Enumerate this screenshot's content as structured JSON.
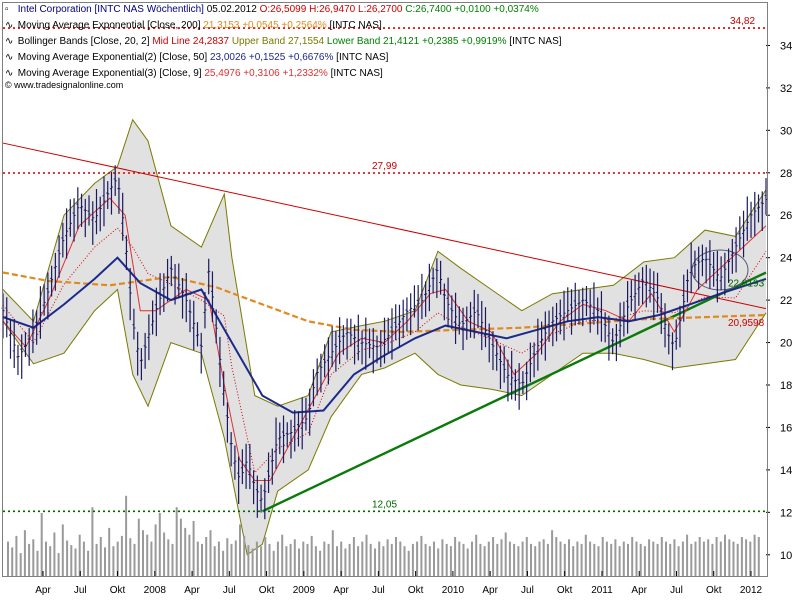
{
  "header": {
    "title": "Intel Corporation [INTC NAS  Wöchentlich]",
    "date": "05.02.2012",
    "ohlc": "O:26,5099 H:26,9470 L:26,2700",
    "close": "C:26,7400 +0,0100 +0,0374%"
  },
  "indicators": [
    {
      "name": "Moving Average Exponential [Close, 200]",
      "value": "21,3153 +0,0545 +0,2564%",
      "suffix": "[INTC NAS]",
      "color": "#e08a1e"
    },
    {
      "name": "Bollinger Bands [Close, 20, 2]",
      "mid": "Mid Line 24,2837",
      "upper": "Upper Band 27,1554",
      "lower": "Lower Band 21,4121 +0,2385 +0,9919%",
      "suffix": "[INTC NAS]",
      "mid_color": "#d00000",
      "band_color": "#7a7a00",
      "change_color": "#008000"
    },
    {
      "name": "Moving Average Exponential(2) [Close, 50]",
      "value": "23,0026 +0,1525 +0,6676%",
      "suffix": "[INTC NAS]",
      "color": "#1c2a8c"
    },
    {
      "name": "Moving Average Exponential(3) [Close, 9]",
      "value": "25,4976 +0,3106 +1,2332%",
      "suffix": "[INTC NAS]",
      "color": "#e03030"
    }
  ],
  "watermark": "www.tradesignalonline.com",
  "chart_data": {
    "type": "line",
    "title": "Intel Corporation [INTC NAS  Wöchentlich]",
    "y_range": [
      9,
      36
    ],
    "y_ticks": [
      10,
      12,
      14,
      16,
      18,
      20,
      22,
      24,
      26,
      28,
      30,
      32,
      34
    ],
    "y_tick_labels": [
      "10",
      "12",
      "14",
      "16",
      "18",
      "20",
      "22",
      "24",
      "26",
      "28",
      "30",
      "32",
      "34"
    ],
    "x_tick_labels": [
      "Apr",
      "Jul",
      "Okt",
      "2008",
      "Apr",
      "Jul",
      "Okt",
      "2009",
      "Apr",
      "Jul",
      "Okt",
      "2010",
      "Apr",
      "Jul",
      "Okt",
      "2011",
      "Apr",
      "Jul",
      "Okt",
      "2012"
    ],
    "grid": false,
    "colors": {
      "price": "#1a1a60",
      "ema200": "#e08a1e",
      "ema50": "#1c2a8c",
      "ema9": "#e03030",
      "bollinger_band": "#7a7a00",
      "bollinger_fill": "#dcdcdc",
      "bollinger_mid": "#d00000",
      "downtrend": "#cc0000",
      "uptrend": "#0a7a0a",
      "volume": "#9a9a9a",
      "level_red": "#cc0000",
      "level_green": "#006400"
    },
    "horizontal_levels": [
      {
        "value": 34.82,
        "label": "34,82",
        "color": "#cc0000"
      },
      {
        "value": 27.99,
        "label": "27,99",
        "color": "#cc0000"
      },
      {
        "value": 12.05,
        "label": "12,05",
        "color": "#006400"
      }
    ],
    "end_labels": [
      {
        "value": 22.8193,
        "label": "22,8193",
        "color": "#006400"
      },
      {
        "value": 20.9598,
        "label": "20,9598",
        "color": "#cc0000"
      }
    ],
    "trendlines": [
      {
        "name": "Downtrend",
        "from": [
          0,
          29.4
        ],
        "to": [
          1,
          21.6
        ]
      },
      {
        "name": "Uptrend",
        "from": [
          0.34,
          12.05
        ],
        "to": [
          1,
          23.3
        ]
      }
    ],
    "price_series": {
      "name": "INTC weekly",
      "points": [
        [
          0.0,
          21.5
        ],
        [
          0.02,
          19.3
        ],
        [
          0.04,
          20.5
        ],
        [
          0.06,
          22.5
        ],
        [
          0.08,
          25.0
        ],
        [
          0.1,
          26.5
        ],
        [
          0.12,
          25.8
        ],
        [
          0.14,
          27.2
        ],
        [
          0.15,
          27.8
        ],
        [
          0.16,
          25.0
        ],
        [
          0.17,
          21.0
        ],
        [
          0.18,
          19.0
        ],
        [
          0.2,
          21.5
        ],
        [
          0.22,
          23.5
        ],
        [
          0.24,
          22.0
        ],
        [
          0.26,
          19.8
        ],
        [
          0.27,
          23.5
        ],
        [
          0.28,
          20.5
        ],
        [
          0.29,
          17.5
        ],
        [
          0.3,
          15.0
        ],
        [
          0.31,
          13.5
        ],
        [
          0.32,
          14.5
        ],
        [
          0.33,
          13.2
        ],
        [
          0.34,
          12.5
        ],
        [
          0.35,
          14.0
        ],
        [
          0.36,
          15.5
        ],
        [
          0.38,
          15.8
        ],
        [
          0.4,
          16.5
        ],
        [
          0.41,
          18.5
        ],
        [
          0.43,
          19.5
        ],
        [
          0.45,
          20.5
        ],
        [
          0.47,
          20.0
        ],
        [
          0.49,
          19.8
        ],
        [
          0.51,
          20.5
        ],
        [
          0.53,
          21.5
        ],
        [
          0.55,
          22.0
        ],
        [
          0.57,
          23.5
        ],
        [
          0.58,
          22.0
        ],
        [
          0.6,
          20.8
        ],
        [
          0.62,
          21.5
        ],
        [
          0.64,
          20.0
        ],
        [
          0.66,
          18.5
        ],
        [
          0.68,
          18.0
        ],
        [
          0.7,
          19.8
        ],
        [
          0.72,
          21.0
        ],
        [
          0.74,
          21.5
        ],
        [
          0.76,
          22.0
        ],
        [
          0.78,
          21.5
        ],
        [
          0.8,
          20.0
        ],
        [
          0.82,
          21.8
        ],
        [
          0.84,
          23.0
        ],
        [
          0.86,
          22.0
        ],
        [
          0.87,
          20.5
        ],
        [
          0.88,
          19.8
        ],
        [
          0.89,
          21.5
        ],
        [
          0.9,
          23.5
        ],
        [
          0.92,
          24.0
        ],
        [
          0.94,
          23.0
        ],
        [
          0.96,
          24.5
        ],
        [
          0.98,
          26.0
        ],
        [
          1.0,
          26.74
        ]
      ]
    },
    "ema200": {
      "name": "Moving Average Exponential [Close, 200]",
      "points": [
        [
          0.0,
          23.3
        ],
        [
          0.06,
          22.9
        ],
        [
          0.14,
          22.7
        ],
        [
          0.22,
          23.1
        ],
        [
          0.28,
          22.6
        ],
        [
          0.34,
          21.8
        ],
        [
          0.4,
          21.0
        ],
        [
          0.46,
          20.6
        ],
        [
          0.52,
          20.5
        ],
        [
          0.6,
          20.6
        ],
        [
          0.68,
          20.7
        ],
        [
          0.76,
          20.9
        ],
        [
          0.84,
          21.1
        ],
        [
          0.92,
          21.2
        ],
        [
          1.0,
          21.3
        ]
      ]
    },
    "ema50": {
      "name": "Moving Average Exponential(2) [Close, 50]",
      "points": [
        [
          0.0,
          21.2
        ],
        [
          0.04,
          20.7
        ],
        [
          0.08,
          21.8
        ],
        [
          0.12,
          23.0
        ],
        [
          0.15,
          24.0
        ],
        [
          0.18,
          22.8
        ],
        [
          0.22,
          22.0
        ],
        [
          0.26,
          22.5
        ],
        [
          0.3,
          20.0
        ],
        [
          0.34,
          17.5
        ],
        [
          0.38,
          16.7
        ],
        [
          0.42,
          16.8
        ],
        [
          0.46,
          18.5
        ],
        [
          0.5,
          19.4
        ],
        [
          0.54,
          20.2
        ],
        [
          0.58,
          20.8
        ],
        [
          0.62,
          20.5
        ],
        [
          0.66,
          20.2
        ],
        [
          0.7,
          20.6
        ],
        [
          0.74,
          21.0
        ],
        [
          0.78,
          21.2
        ],
        [
          0.82,
          21.0
        ],
        [
          0.86,
          21.3
        ],
        [
          0.9,
          21.8
        ],
        [
          0.94,
          22.3
        ],
        [
          1.0,
          23.0
        ]
      ]
    },
    "bollinger_upper": {
      "name": "Upper Band",
      "points": [
        [
          0.0,
          22.5
        ],
        [
          0.04,
          21.0
        ],
        [
          0.08,
          26.0
        ],
        [
          0.12,
          27.5
        ],
        [
          0.15,
          28.3
        ],
        [
          0.17,
          30.5
        ],
        [
          0.19,
          29.5
        ],
        [
          0.22,
          25.5
        ],
        [
          0.26,
          24.5
        ],
        [
          0.29,
          27.0
        ],
        [
          0.3,
          24.0
        ],
        [
          0.33,
          17.5
        ],
        [
          0.36,
          17.0
        ],
        [
          0.4,
          17.5
        ],
        [
          0.43,
          20.5
        ],
        [
          0.47,
          20.8
        ],
        [
          0.5,
          21.0
        ],
        [
          0.54,
          21.5
        ],
        [
          0.57,
          24.3
        ],
        [
          0.6,
          23.5
        ],
        [
          0.64,
          22.5
        ],
        [
          0.68,
          21.5
        ],
        [
          0.72,
          22.3
        ],
        [
          0.76,
          22.5
        ],
        [
          0.8,
          22.7
        ],
        [
          0.84,
          23.8
        ],
        [
          0.88,
          24.0
        ],
        [
          0.92,
          25.3
        ],
        [
          0.96,
          25.0
        ],
        [
          1.0,
          27.2
        ]
      ]
    },
    "bollinger_lower": {
      "name": "Lower Band",
      "points": [
        [
          0.0,
          21.0
        ],
        [
          0.04,
          19.0
        ],
        [
          0.08,
          19.5
        ],
        [
          0.12,
          21.5
        ],
        [
          0.15,
          22.5
        ],
        [
          0.17,
          18.5
        ],
        [
          0.19,
          17.0
        ],
        [
          0.22,
          20.0
        ],
        [
          0.26,
          19.5
        ],
        [
          0.29,
          15.5
        ],
        [
          0.32,
          10.0
        ],
        [
          0.34,
          10.5
        ],
        [
          0.36,
          13.0
        ],
        [
          0.4,
          14.0
        ],
        [
          0.43,
          16.5
        ],
        [
          0.47,
          18.5
        ],
        [
          0.5,
          18.8
        ],
        [
          0.54,
          19.5
        ],
        [
          0.57,
          18.5
        ],
        [
          0.6,
          18.0
        ],
        [
          0.64,
          17.8
        ],
        [
          0.68,
          17.5
        ],
        [
          0.72,
          18.5
        ],
        [
          0.76,
          19.5
        ],
        [
          0.8,
          19.5
        ],
        [
          0.84,
          19.2
        ],
        [
          0.88,
          18.8
        ],
        [
          0.92,
          19.0
        ],
        [
          0.96,
          19.2
        ],
        [
          1.0,
          21.4
        ]
      ]
    },
    "ema9": {
      "name": "Moving Average Exponential(3) [Close, 9]",
      "points": [
        [
          0.0,
          21.0
        ],
        [
          0.03,
          19.8
        ],
        [
          0.06,
          22.0
        ],
        [
          0.1,
          25.5
        ],
        [
          0.14,
          26.8
        ],
        [
          0.16,
          26.0
        ],
        [
          0.18,
          21.5
        ],
        [
          0.2,
          21.5
        ],
        [
          0.24,
          22.5
        ],
        [
          0.27,
          22.0
        ],
        [
          0.29,
          18.0
        ],
        [
          0.31,
          14.5
        ],
        [
          0.33,
          13.5
        ],
        [
          0.35,
          13.5
        ],
        [
          0.38,
          15.5
        ],
        [
          0.41,
          17.5
        ],
        [
          0.44,
          19.5
        ],
        [
          0.47,
          20.2
        ],
        [
          0.5,
          20.0
        ],
        [
          0.53,
          21.0
        ],
        [
          0.56,
          22.3
        ],
        [
          0.58,
          22.5
        ],
        [
          0.61,
          21.0
        ],
        [
          0.64,
          20.5
        ],
        [
          0.67,
          18.5
        ],
        [
          0.7,
          19.5
        ],
        [
          0.73,
          21.0
        ],
        [
          0.76,
          21.8
        ],
        [
          0.79,
          21.5
        ],
        [
          0.82,
          21.0
        ],
        [
          0.85,
          22.3
        ],
        [
          0.88,
          20.5
        ],
        [
          0.91,
          22.5
        ],
        [
          0.94,
          23.5
        ],
        [
          0.97,
          24.5
        ],
        [
          1.0,
          25.5
        ]
      ]
    },
    "volume_relative": [
      0.3,
      0.25,
      0.35,
      0.2,
      0.4,
      0.28,
      0.32,
      0.22,
      0.55,
      0.3,
      0.26,
      0.38,
      0.2,
      0.45,
      0.31,
      0.27,
      0.24,
      0.36,
      0.3,
      0.22,
      0.6,
      0.28,
      0.34,
      0.25,
      0.42,
      0.26,
      0.3,
      0.35,
      0.7,
      0.33,
      0.28,
      0.5,
      0.4,
      0.36,
      0.3,
      0.45,
      0.55,
      0.38,
      0.32,
      0.28,
      0.6,
      0.5,
      0.42,
      0.36,
      0.48,
      0.3,
      0.28,
      0.34,
      0.4,
      0.26,
      0.3,
      0.22,
      0.33,
      0.28,
      0.31,
      0.45,
      0.35,
      0.27,
      0.24,
      0.3,
      0.26,
      0.34,
      0.28,
      0.22,
      0.3,
      0.36,
      0.26,
      0.28,
      0.32,
      0.24,
      0.3,
      0.28,
      0.35,
      0.26,
      0.22,
      0.3,
      0.28,
      0.4,
      0.26,
      0.3,
      0.24,
      0.28,
      0.34,
      0.26,
      0.3,
      0.36,
      0.28,
      0.24,
      0.3,
      0.26,
      0.32,
      0.28,
      0.34,
      0.3,
      0.26,
      0.22,
      0.28,
      0.3,
      0.35,
      0.28,
      0.26,
      0.3,
      0.24,
      0.32,
      0.28,
      0.26,
      0.34,
      0.3,
      0.28,
      0.24,
      0.3,
      0.36,
      0.28,
      0.26,
      0.3,
      0.34,
      0.28,
      0.32,
      0.38,
      0.3,
      0.28,
      0.26,
      0.3,
      0.34,
      0.28,
      0.26,
      0.3,
      0.32,
      0.28,
      0.4,
      0.34,
      0.3,
      0.28,
      0.32,
      0.26,
      0.3,
      0.28,
      0.36,
      0.3,
      0.28,
      0.26,
      0.34,
      0.3,
      0.28,
      0.32,
      0.26,
      0.3,
      0.28,
      0.34,
      0.3,
      0.28,
      0.26,
      0.32,
      0.3,
      0.28,
      0.34,
      0.3,
      0.28,
      0.32,
      0.26,
      0.3,
      0.36,
      0.28,
      0.3,
      0.34,
      0.3,
      0.32,
      0.28,
      0.34,
      0.3,
      0.36,
      0.32,
      0.3,
      0.28,
      0.34,
      0.32,
      0.3,
      0.36,
      0.34
    ]
  }
}
